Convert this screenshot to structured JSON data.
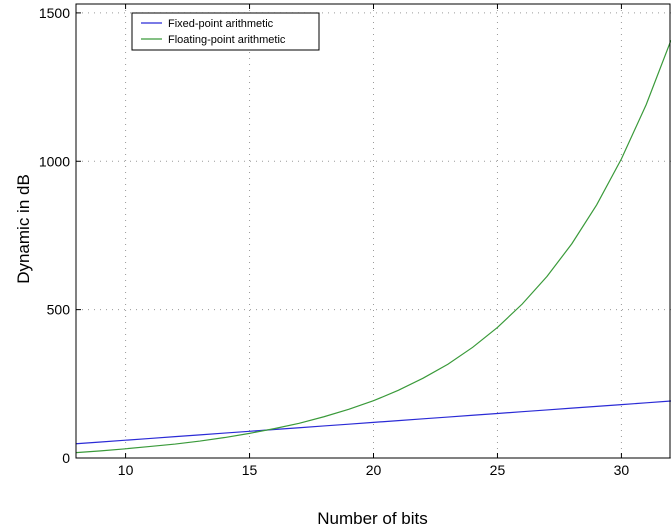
{
  "chart_data": {
    "type": "line",
    "title": "",
    "xlabel": "Number of bits",
    "ylabel": "Dynamic in dB",
    "xlim": [
      8,
      32
    ],
    "ylim": [
      0,
      1530
    ],
    "xticks": [
      10,
      15,
      20,
      25,
      30
    ],
    "yticks": [
      0,
      500,
      1000,
      1500
    ],
    "grid": true,
    "legend_position": "top-left",
    "x": [
      8,
      9,
      10,
      11,
      12,
      13,
      14,
      15,
      16,
      17,
      18,
      19,
      20,
      21,
      22,
      23,
      24,
      25,
      26,
      27,
      28,
      29,
      30,
      31,
      32
    ],
    "series": [
      {
        "name": "Fixed-point arithmetic",
        "color": "#2b2bd6",
        "values": [
          48,
          54,
          60,
          66,
          72,
          78,
          84,
          90,
          96,
          102,
          108,
          114,
          120,
          126,
          132,
          138,
          144,
          150,
          156,
          162,
          168,
          174,
          180,
          186,
          192
        ]
      },
      {
        "name": "Floating-point arithmetic",
        "color": "#3a9a3a",
        "values": [
          18,
          24,
          31,
          39,
          47,
          57,
          69,
          83,
          99,
          117,
          139,
          164,
          193,
          228,
          269,
          316,
          373,
          440,
          519,
          612,
          722,
          853,
          1008,
          1191,
          1408
        ]
      }
    ]
  }
}
